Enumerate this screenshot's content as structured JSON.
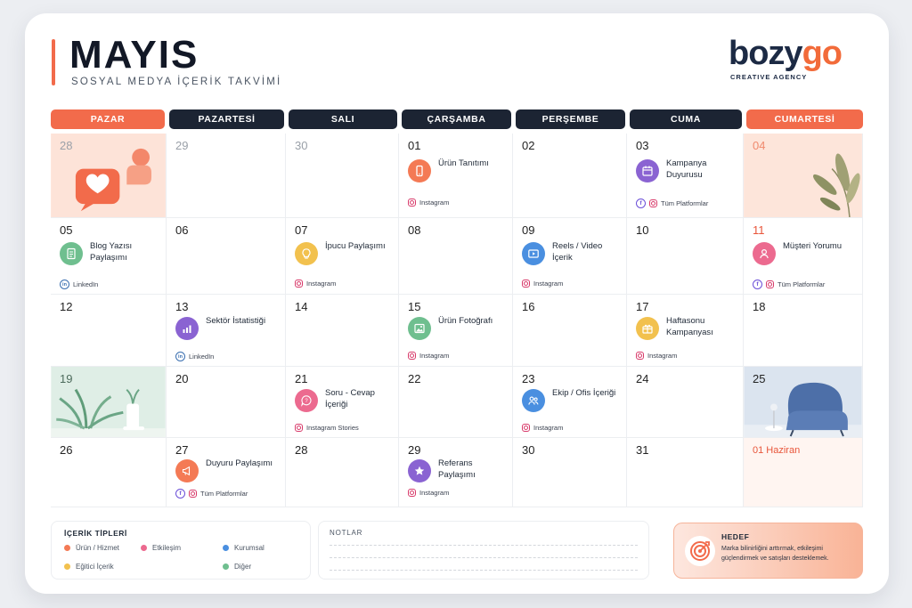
{
  "header": {
    "title": "MAYIS",
    "subtitle": "SOSYAL MEDYA İÇERİK TAKVİMİ",
    "logo_brand_1": "bozy",
    "logo_brand_2": "go",
    "logo_tagline": "CREATIVE AGENCY"
  },
  "weekdays": [
    "PAZAR",
    "PAZARTESİ",
    "SALI",
    "ÇARŞAMBA",
    "PERŞEMBE",
    "CUMA",
    "CUMARTESİ"
  ],
  "days": {
    "d28": "28",
    "d29": "29",
    "d30": "30",
    "d01": "01",
    "d02": "02",
    "d03": "03",
    "d04": "04",
    "d05": "05",
    "d06": "06",
    "d07": "07",
    "d08": "08",
    "d09": "09",
    "d10": "10",
    "d11": "11",
    "d12": "12",
    "d13": "13",
    "d14": "14",
    "d15": "15",
    "d16": "16",
    "d17": "17",
    "d18": "18",
    "d19": "19",
    "d20": "20",
    "d21": "21",
    "d22": "22",
    "d23": "23",
    "d24": "24",
    "d25": "25",
    "d26": "26",
    "d27": "27",
    "d28b": "28",
    "d29b": "29",
    "d30b": "30",
    "d31": "31",
    "next_month": "01 Haziran"
  },
  "events": {
    "e01": {
      "label": "Ürün Tanıtımı",
      "platform": "Instagram",
      "icon": "phone-icon",
      "color": "#f47a55"
    },
    "e03": {
      "label": "Kampanya Duyurusu",
      "platform": "Tüm Platformlar",
      "icon": "calendar-icon",
      "color": "#8a63d2"
    },
    "e05": {
      "label": "Blog Yazısı Paylaşımı",
      "platform": "LinkedIn",
      "icon": "document-icon",
      "color": "#6fbf8f"
    },
    "e07": {
      "label": "İpucu Paylaşımı",
      "platform": "Instagram",
      "icon": "lightbulb-icon",
      "color": "#f2c14e"
    },
    "e09": {
      "label": "Reels / Video İçerik",
      "platform": "Instagram",
      "icon": "video-icon",
      "color": "#4a8fe0"
    },
    "e11": {
      "label": "Müşteri Yorumu",
      "platform": "Tüm Platformlar",
      "icon": "user-icon",
      "color": "#ec6a8f"
    },
    "e13": {
      "label": "Sektör İstatistiği",
      "platform": "LinkedIn",
      "icon": "chart-icon",
      "color": "#8a63d2"
    },
    "e15": {
      "label": "Ürün Fotoğrafı",
      "platform": "Instagram",
      "icon": "image-icon",
      "color": "#6fbf8f"
    },
    "e17": {
      "label": "Haftasonu Kampanyası",
      "platform": "Instagram",
      "icon": "gift-icon",
      "color": "#f2c14e"
    },
    "e21": {
      "label": "Soru - Cevap İçeriği",
      "platform": "Instagram Stories",
      "icon": "question-icon",
      "color": "#ec6a8f"
    },
    "e23": {
      "label": "Ekip / Ofis İçeriği",
      "platform": "Instagram",
      "icon": "team-icon",
      "color": "#4a8fe0"
    },
    "e27": {
      "label": "Duyuru Paylaşımı",
      "platform": "Tüm Platformlar",
      "icon": "megaphone-icon",
      "color": "#f47a55"
    },
    "e29": {
      "label": "Referans Paylaşımı",
      "platform": "Instagram",
      "icon": "star-icon",
      "color": "#8a63d2"
    }
  },
  "legend": {
    "title": "İÇERİK TİPLERİ",
    "items": [
      {
        "label": "Ürün / Hizmet",
        "color": "#f47a55"
      },
      {
        "label": "Etkileşim",
        "color": "#ec6a8f"
      },
      {
        "label": "Kurumsal",
        "color": "#4a8fe0"
      },
      {
        "label": "Eğitici İçerik",
        "color": "#f2c14e"
      },
      {
        "label": "Diğer",
        "color": "#6fbf8f"
      }
    ]
  },
  "notes": {
    "title": "NOTLAR"
  },
  "goal": {
    "title": "HEDEF",
    "text": "Marka bilinirliğini arttırmak, etkileşimi güçlendirmek ve satışları desteklemek."
  },
  "colors": {
    "accent": "#f26b4b",
    "dark": "#1c2433"
  }
}
